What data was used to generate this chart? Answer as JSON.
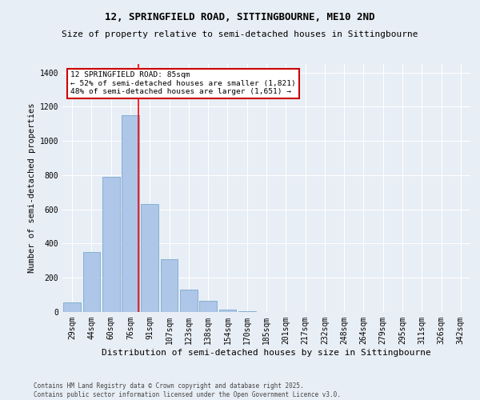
{
  "title": "12, SPRINGFIELD ROAD, SITTINGBOURNE, ME10 2ND",
  "subtitle": "Size of property relative to semi-detached houses in Sittingbourne",
  "xlabel": "Distribution of semi-detached houses by size in Sittingbourne",
  "ylabel": "Number of semi-detached properties",
  "categories": [
    "29sqm",
    "44sqm",
    "60sqm",
    "76sqm",
    "91sqm",
    "107sqm",
    "123sqm",
    "138sqm",
    "154sqm",
    "170sqm",
    "185sqm",
    "201sqm",
    "217sqm",
    "232sqm",
    "248sqm",
    "264sqm",
    "279sqm",
    "295sqm",
    "311sqm",
    "326sqm",
    "342sqm"
  ],
  "values": [
    55,
    350,
    790,
    1150,
    630,
    310,
    130,
    65,
    15,
    5,
    0,
    0,
    0,
    0,
    0,
    0,
    0,
    0,
    0,
    0,
    0
  ],
  "bar_color": "#aec6e8",
  "bar_edge_color": "#7aaad0",
  "background_color": "#e8eef5",
  "grid_color": "#ffffff",
  "annotation_title": "12 SPRINGFIELD ROAD: 85sqm",
  "annotation_line1": "← 52% of semi-detached houses are smaller (1,821)",
  "annotation_line2": "48% of semi-detached houses are larger (1,651) →",
  "annotation_box_facecolor": "#ffffff",
  "annotation_box_edgecolor": "#cc0000",
  "redline_x": 3.425,
  "footer_line1": "Contains HM Land Registry data © Crown copyright and database right 2025.",
  "footer_line2": "Contains public sector information licensed under the Open Government Licence v3.0.",
  "ylim": [
    0,
    1450
  ],
  "yticks": [
    0,
    200,
    400,
    600,
    800,
    1000,
    1200,
    1400
  ],
  "title_fontsize": 9,
  "subtitle_fontsize": 8,
  "ylabel_fontsize": 7.5,
  "xlabel_fontsize": 8,
  "tick_fontsize": 7,
  "footer_fontsize": 5.5
}
